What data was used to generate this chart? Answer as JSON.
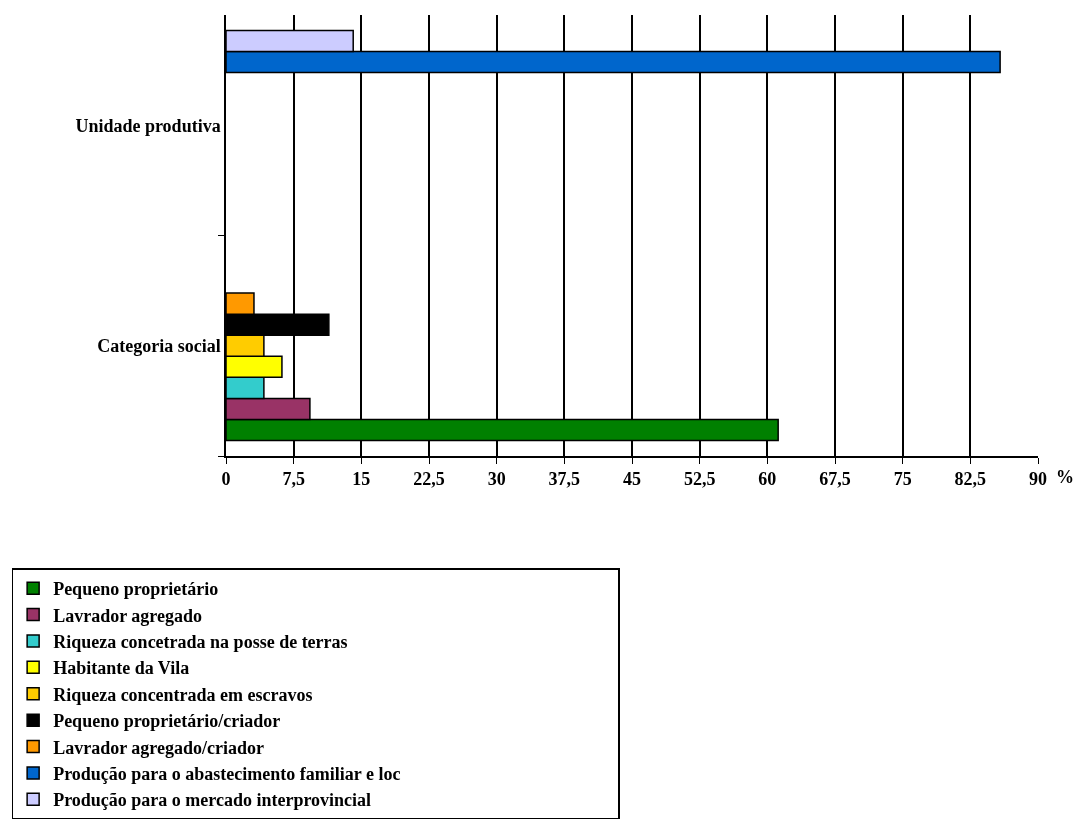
{
  "chart_data": {
    "type": "bar",
    "orientation": "horizontal",
    "xlabel": "%",
    "categories": [
      "Unidade produtiva",
      "Categoria social"
    ],
    "series": [
      {
        "name": "Pequeno proprietário",
        "color": "#008000",
        "values": [
          null,
          61.2
        ]
      },
      {
        "name": "Lavrador agregado",
        "color": "#993366",
        "values": [
          null,
          9.3
        ]
      },
      {
        "name": "Riqueza concetrada na posse de terras",
        "color": "#33cccc",
        "values": [
          null,
          4.2
        ]
      },
      {
        "name": "Habitante da Vila",
        "color": "#ffff00",
        "values": [
          null,
          6.2
        ]
      },
      {
        "name": "Riqueza concentrada em escravos",
        "color": "#ffcc00",
        "values": [
          null,
          4.2
        ]
      },
      {
        "name": "Pequeno proprietário/criador",
        "color": "#000000",
        "values": [
          null,
          11.4
        ]
      },
      {
        "name": "Lavrador agregado/criador",
        "color": "#ff9900",
        "values": [
          null,
          3.1
        ]
      },
      {
        "name": "Produção para o abastecimento familiar e loc",
        "color": "#0066cc",
        "values": [
          85.8,
          null
        ]
      },
      {
        "name": "Produção para o mercado interprovincial",
        "color": "#ccccff",
        "values": [
          14.1,
          null
        ]
      }
    ],
    "xlim": [
      0,
      90
    ],
    "xticks": [
      0,
      {
        "value": 7.5,
        "label": "7,5"
      },
      15,
      {
        "value": 22.5,
        "label": "22,5"
      },
      30,
      {
        "value": 37.5,
        "label": "37,5"
      },
      45,
      {
        "value": 52.5,
        "label": "52,5"
      },
      60,
      {
        "value": 67.5,
        "label": "67,5"
      },
      75,
      {
        "value": 82.5,
        "label": "82,5"
      },
      90
    ],
    "grid": "x",
    "legend": "bottom"
  }
}
